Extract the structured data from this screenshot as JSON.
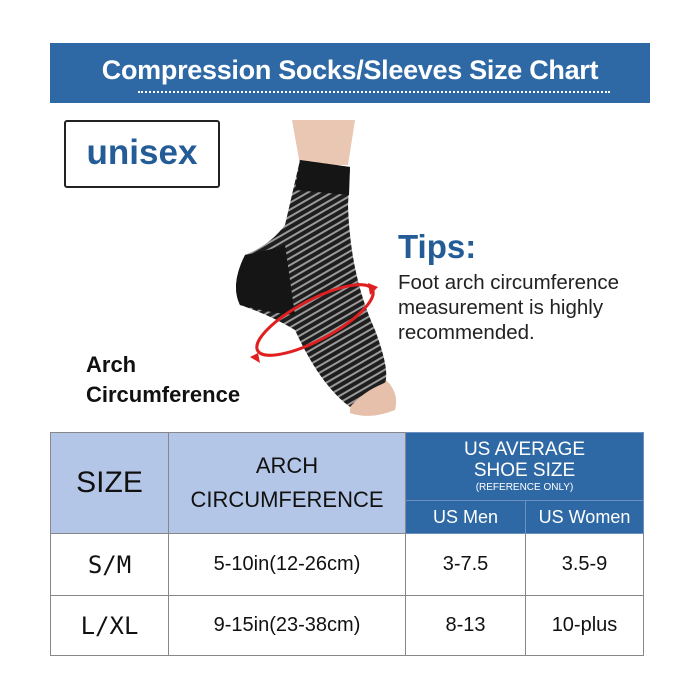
{
  "title": "Compression Socks/Sleeves Size Chart",
  "badge": "unisex",
  "tips": {
    "title": "Tips:",
    "body": "Foot arch circumference measurement is highly recommended."
  },
  "arch_label": {
    "line1": "Arch",
    "line2": "Circumference"
  },
  "colors": {
    "banner": "#2e69a6",
    "header_light": "#b4c6e7",
    "text_blue": "#245c97",
    "arrow_red": "#e02020"
  },
  "table": {
    "headers": {
      "size": "SIZE",
      "arch_line1": "ARCH",
      "arch_line2": "CIRCUMFERENCE",
      "shoe_line1": "US AVERAGE",
      "shoe_line2": "SHOE SIZE",
      "shoe_note": "(REFERENCE ONLY)",
      "men": "US Men",
      "women": "US Women"
    },
    "rows": [
      {
        "size": "S/M",
        "arch": "5-10in(12-26cm)",
        "men": "3-7.5",
        "women": "3.5-9"
      },
      {
        "size": "L/XL",
        "arch": "9-15in(23-38cm)",
        "men": "8-13",
        "women": "10-plus"
      }
    ]
  }
}
